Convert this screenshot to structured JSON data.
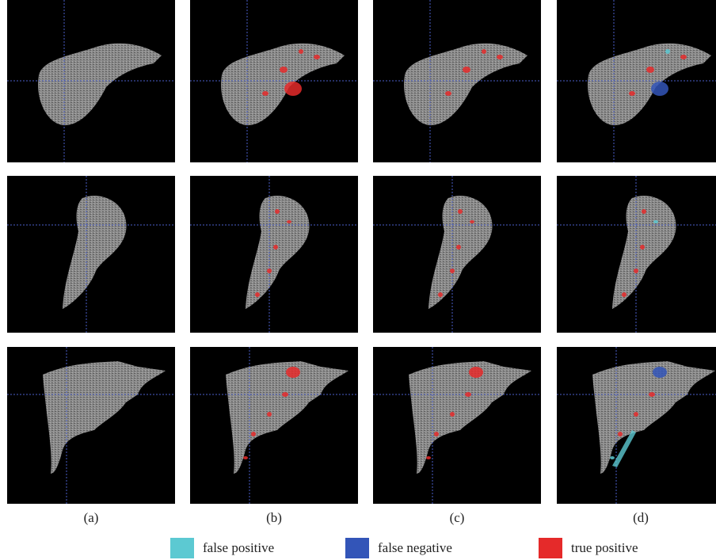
{
  "captions": [
    "(a)",
    "(b)",
    "(c)",
    "(d)"
  ],
  "legend": [
    {
      "label": "false positive",
      "color": "#5cc9d2"
    },
    {
      "label": "false negative",
      "color": "#3355b8"
    },
    {
      "label": "true positive",
      "color": "#e52a2a"
    }
  ]
}
